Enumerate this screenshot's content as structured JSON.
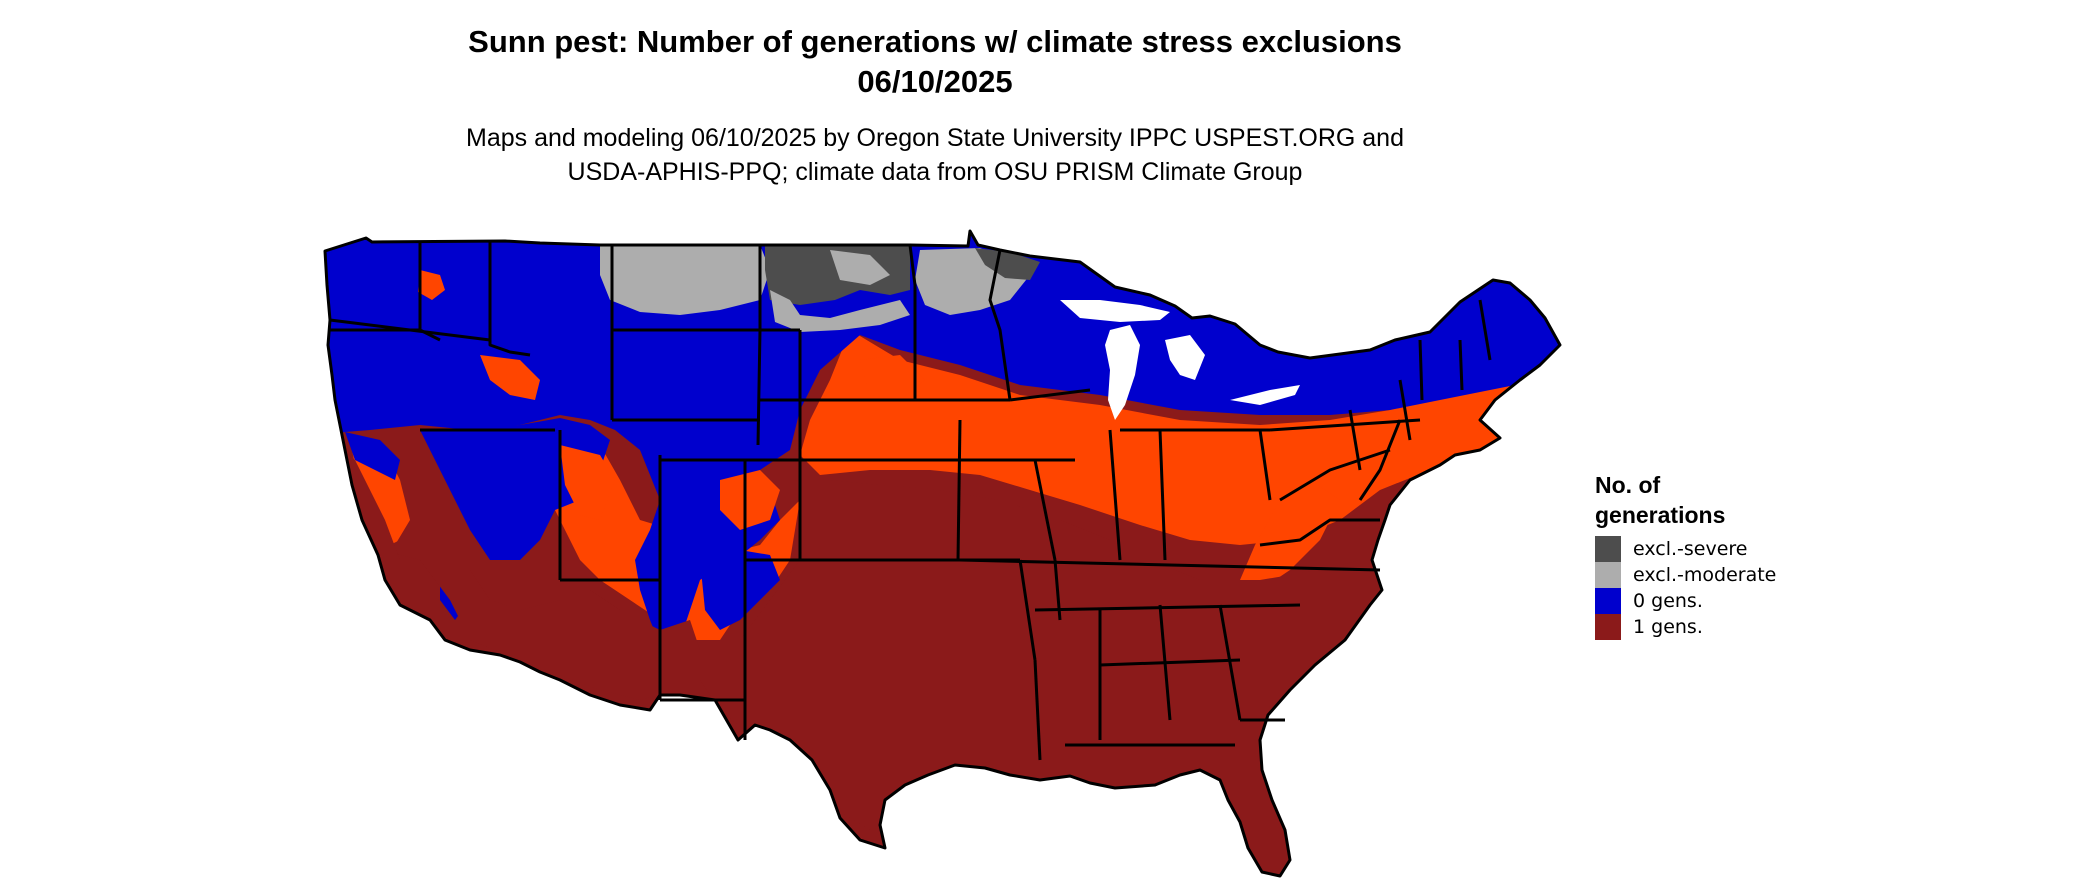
{
  "title": {
    "line1": "Sunn pest: Number of generations w/ climate stress exclusions",
    "line2": "06/10/2025"
  },
  "subtitle": {
    "line1": "Maps and modeling 06/10/2025 by Oregon State University IPPC USPEST.ORG and",
    "line2": "USDA-APHIS-PPQ; climate data from OSU PRISM Climate Group"
  },
  "legend": {
    "title_line1": "No. of",
    "title_line2": "generations",
    "items": [
      {
        "label": "excl.-severe",
        "color": "#4d4d4d"
      },
      {
        "label": "excl.-moderate",
        "color": "#adadad"
      },
      {
        "label": "0 gens.",
        "color": "#0000cd"
      },
      {
        "label": "1 gens.",
        "color": "#8b1a1a"
      }
    ]
  },
  "map": {
    "region": "Contiguous United States",
    "colors": {
      "zero_gens": "#0000cd",
      "one_gen": "#8b1a1a",
      "transition": "#ff4500",
      "excl_severe": "#4d4d4d",
      "excl_moderate": "#adadad",
      "borders": "#000000",
      "water": "#ffffff"
    }
  }
}
